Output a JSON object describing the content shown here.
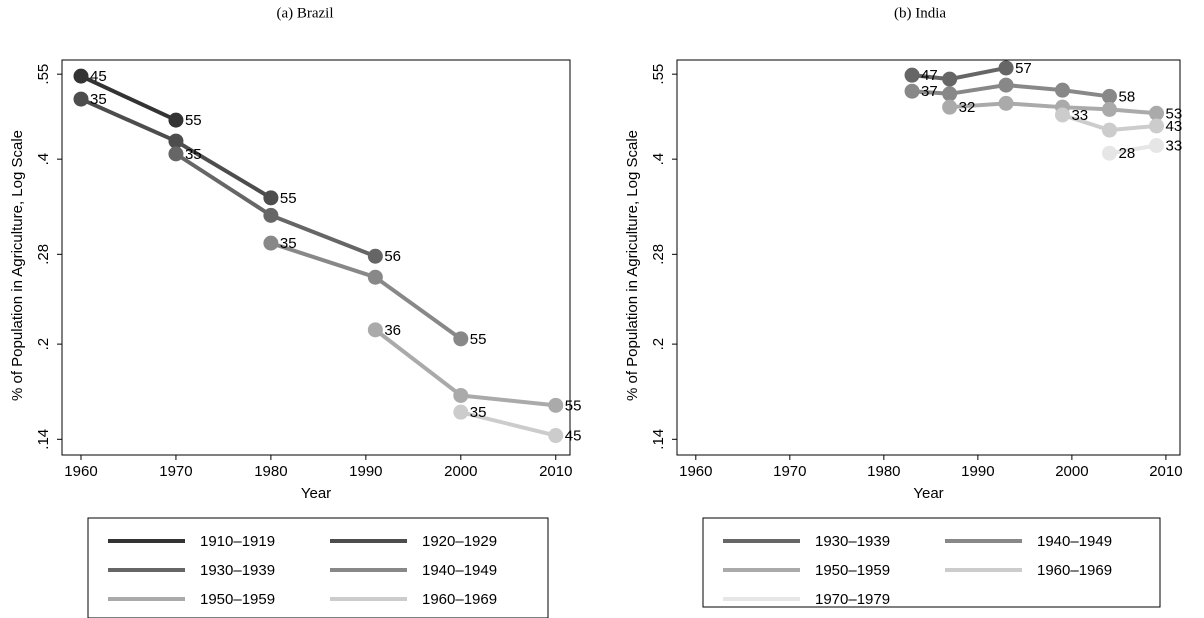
{
  "chart_data": [
    {
      "type": "line",
      "title": "(a) Brazil",
      "x_label": "Year",
      "y_label": "% of Population in Agriculture, Log Scale",
      "log_y": true,
      "xlim": [
        1958,
        2011.5
      ],
      "ylim": [
        0.132,
        0.58
      ],
      "xticks": [
        1960,
        1970,
        1980,
        1990,
        2000,
        2010
      ],
      "yticks": [
        {
          "value": 0.14,
          "label": ".14"
        },
        {
          "value": 0.2,
          "label": ".2"
        },
        {
          "value": 0.28,
          "label": ".28"
        },
        {
          "value": 0.4,
          "label": ".4"
        },
        {
          "value": 0.55,
          "label": ".55"
        }
      ],
      "series": [
        {
          "name": "1910–1919",
          "color": "#333333",
          "x": [
            1960,
            1970
          ],
          "values": [
            0.546,
            0.463
          ],
          "point_labels": [
            45,
            55
          ]
        },
        {
          "name": "1920–1929",
          "color": "#4d4d4d",
          "x": [
            1960,
            1970,
            1980
          ],
          "values": [
            0.501,
            0.428,
            0.346
          ],
          "point_labels": [
            35,
            null,
            55
          ]
        },
        {
          "name": "1930–1939",
          "color": "#666666",
          "x": [
            1970,
            1980,
            1991
          ],
          "values": [
            0.408,
            0.324,
            0.278
          ],
          "point_labels": [
            35,
            null,
            56
          ]
        },
        {
          "name": "1940–1949",
          "color": "#888888",
          "x": [
            1980,
            1991,
            2000
          ],
          "values": [
            0.292,
            0.257,
            0.204
          ],
          "point_labels": [
            35,
            null,
            55
          ]
        },
        {
          "name": "1950–1959",
          "color": "#aaaaaa",
          "x": [
            1991,
            2000,
            2010
          ],
          "values": [
            0.211,
            0.165,
            0.159
          ],
          "point_labels": [
            36,
            null,
            55
          ]
        },
        {
          "name": "1960–1969",
          "color": "#cccccc",
          "x": [
            2000,
            2010
          ],
          "values": [
            0.155,
            0.142
          ],
          "point_labels": [
            35,
            45
          ]
        }
      ]
    },
    {
      "type": "line",
      "title": "(b) India",
      "x_label": "Year",
      "y_label": "% of Population in Agriculture, Log Scale",
      "log_y": true,
      "xlim": [
        1958,
        2011.5
      ],
      "ylim": [
        0.132,
        0.58
      ],
      "xticks": [
        1960,
        1970,
        1980,
        1990,
        2000,
        2010
      ],
      "yticks": [
        {
          "value": 0.14,
          "label": ".14"
        },
        {
          "value": 0.2,
          "label": ".2"
        },
        {
          "value": 0.28,
          "label": ".28"
        },
        {
          "value": 0.4,
          "label": ".4"
        },
        {
          "value": 0.55,
          "label": ".55"
        }
      ],
      "series": [
        {
          "name": "1930–1939",
          "color": "#666666",
          "x": [
            1983,
            1987,
            1993
          ],
          "values": [
            0.548,
            0.54,
            0.563
          ],
          "point_labels": [
            47,
            null,
            57
          ]
        },
        {
          "name": "1940–1949",
          "color": "#888888",
          "x": [
            1983,
            1987,
            1993,
            1999,
            2004
          ],
          "values": [
            0.516,
            0.511,
            0.528,
            0.518,
            0.506
          ],
          "point_labels": [
            37,
            null,
            null,
            null,
            58
          ]
        },
        {
          "name": "1950–1959",
          "color": "#aaaaaa",
          "x": [
            1987,
            1993,
            1999,
            2004,
            2009
          ],
          "values": [
            0.486,
            0.493,
            0.486,
            0.482,
            0.475
          ],
          "point_labels": [
            32,
            null,
            null,
            null,
            53
          ]
        },
        {
          "name": "1960–1969",
          "color": "#cccccc",
          "x": [
            1999,
            2004,
            2009
          ],
          "values": [
            0.472,
            0.446,
            0.453
          ],
          "point_labels": [
            33,
            null,
            43
          ]
        },
        {
          "name": "1970–1979",
          "color": "#e6e6e6",
          "x": [
            2004,
            2009
          ],
          "values": [
            0.409,
            0.421
          ],
          "point_labels": [
            28,
            33
          ]
        }
      ]
    }
  ]
}
